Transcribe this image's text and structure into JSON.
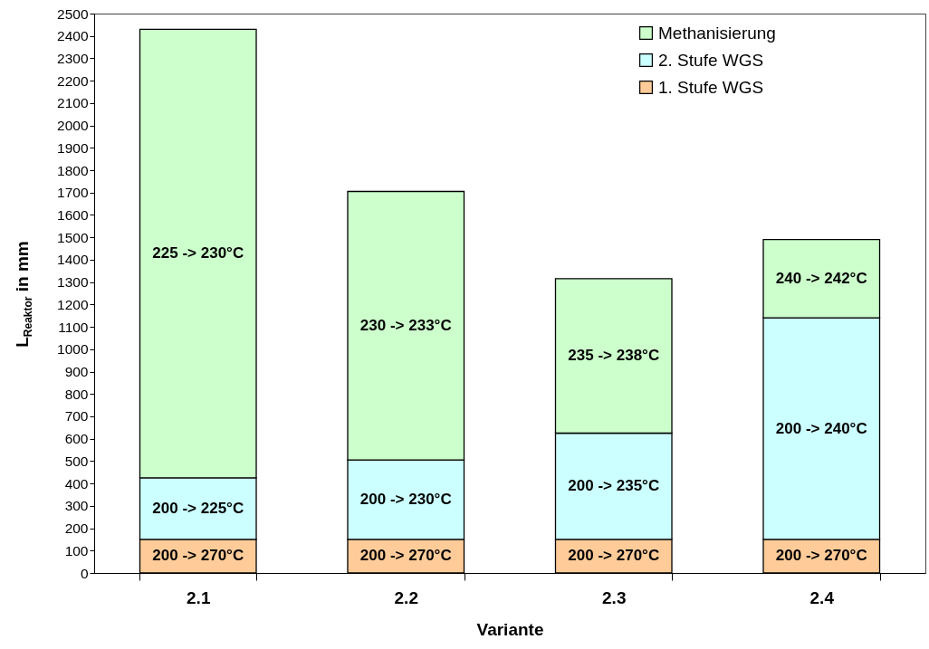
{
  "chart_data": {
    "type": "bar",
    "stacked": true,
    "xlabel": "Variante",
    "ylabel": "L$_{Reaktor}$ in mm",
    "categories": [
      "2.1",
      "2.2",
      "2.3",
      "2.4"
    ],
    "series": [
      {
        "name": "1. Stufe WGS",
        "color": "#ffcc99",
        "values": [
          150,
          150,
          150,
          150
        ]
      },
      {
        "name": "2. Stufe WGS",
        "color": "#ccffff",
        "values": [
          275,
          355,
          475,
          990
        ]
      },
      {
        "name": "Methanisierung",
        "color": "#ccffcc",
        "values": [
          2005,
          1200,
          690,
          350
        ]
      }
    ],
    "annotations": [
      "200 -> 270°C",
      "200 -> 270°C",
      "200 -> 270°C",
      "200 -> 270°C",
      "200 -> 225°C",
      "200 -> 230°C",
      "200 -> 235°C",
      "200 -> 240°C",
      "225 -> 230°C",
      "230 -> 233°C",
      "235 -> 238°C",
      "240 -> 242°C"
    ],
    "ylim": [
      0,
      2500
    ],
    "yticks": [
      0,
      100,
      200,
      300,
      400,
      500,
      600,
      700,
      800,
      900,
      1000,
      1100,
      1200,
      1300,
      1400,
      1500,
      1600,
      1700,
      1800,
      1900,
      2000,
      2100,
      2200,
      2300,
      2400,
      2500
    ],
    "grid": false,
    "legend": "top right"
  }
}
